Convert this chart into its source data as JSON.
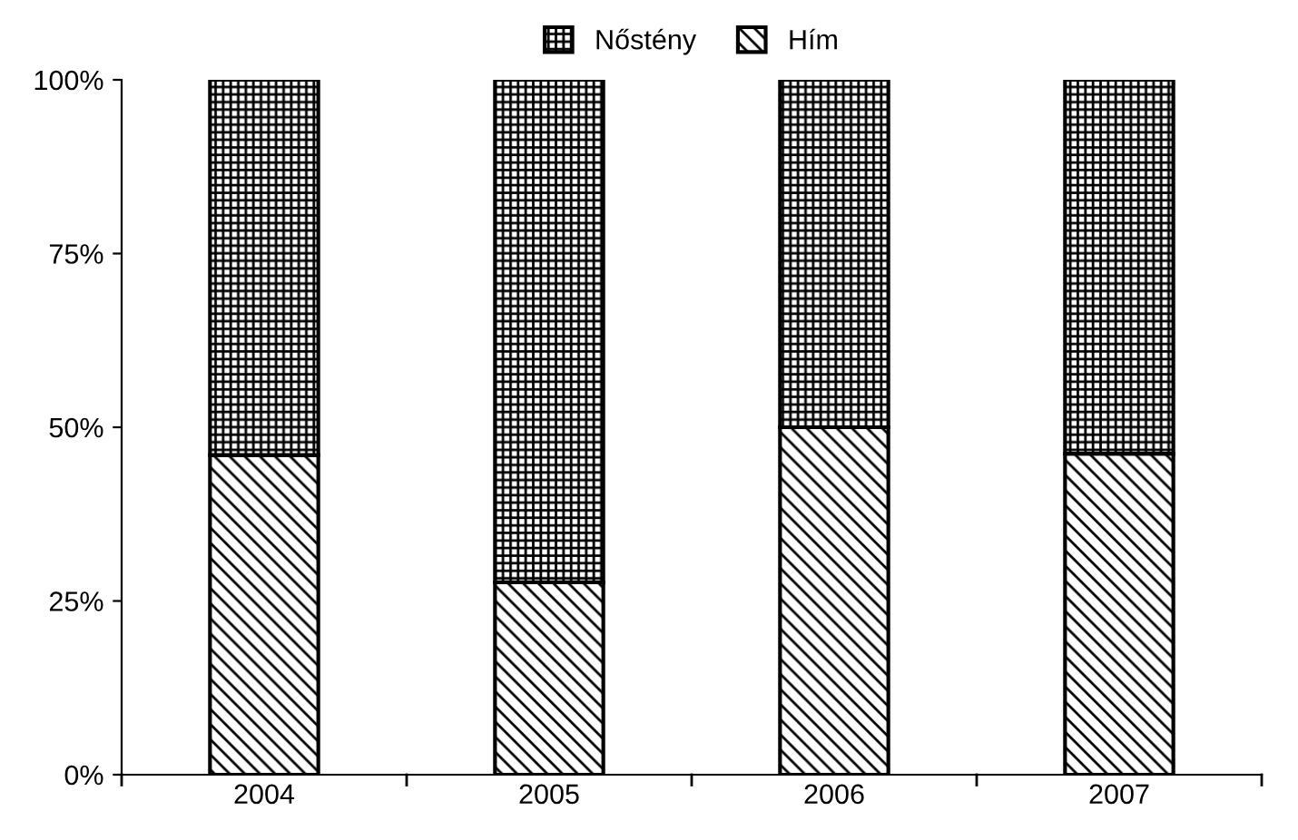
{
  "chart_data": {
    "type": "bar",
    "stacked": true,
    "categories": [
      "2004",
      "2005",
      "2006",
      "2007"
    ],
    "series": [
      {
        "name": "Hím",
        "color": "#000000",
        "values": [
          46,
          27.7,
          50,
          46.2
        ]
      },
      {
        "name": "Nőstény",
        "color": "#000000",
        "values": [
          54,
          72.3,
          50,
          53.8
        ]
      }
    ],
    "ylim": [
      0,
      100
    ],
    "yticks": [
      {
        "value": 0,
        "label": "0%"
      },
      {
        "value": 25,
        "label": "25%"
      },
      {
        "value": 50,
        "label": "50%"
      },
      {
        "value": 75,
        "label": "75%"
      },
      {
        "value": 100,
        "label": "100%"
      }
    ],
    "grid": false,
    "legend": "top"
  }
}
